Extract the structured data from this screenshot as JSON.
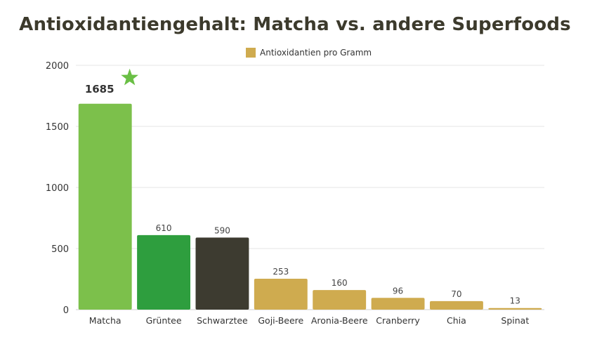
{
  "chart_data": {
    "type": "bar",
    "title": "Antioxidantiengehalt: Matcha vs. andere Superfoods",
    "xlabel": "",
    "ylabel": "",
    "ylim": [
      0,
      2000
    ],
    "yticks": [
      0,
      500,
      1000,
      1500,
      2000
    ],
    "grid": true,
    "legend_placement": "top-center",
    "categories": [
      "Matcha",
      "Grüntee",
      "Schwarztee",
      "Goji-Beere",
      "Aronia-Beere",
      "Cranberry",
      "Chia",
      "Spinat"
    ],
    "series": [
      {
        "name": "Antioxidantien pro Gramm",
        "values": [
          1685,
          610,
          590,
          253,
          160,
          96,
          70,
          13
        ]
      }
    ],
    "bar_colors": [
      "#7cc04b",
      "#2e9e3e",
      "#3d3b30",
      "#cfab4f",
      "#cfab4f",
      "#cfab4f",
      "#cfab4f",
      "#cfab4f"
    ],
    "legend_color": "#cfab4f",
    "highlight_index": 0,
    "highlight_marker": "star-icon",
    "highlight_marker_color": "#6abf45",
    "data_labels": [
      "1685",
      "610",
      "590",
      "253",
      "160",
      "96",
      "70",
      "13"
    ]
  }
}
